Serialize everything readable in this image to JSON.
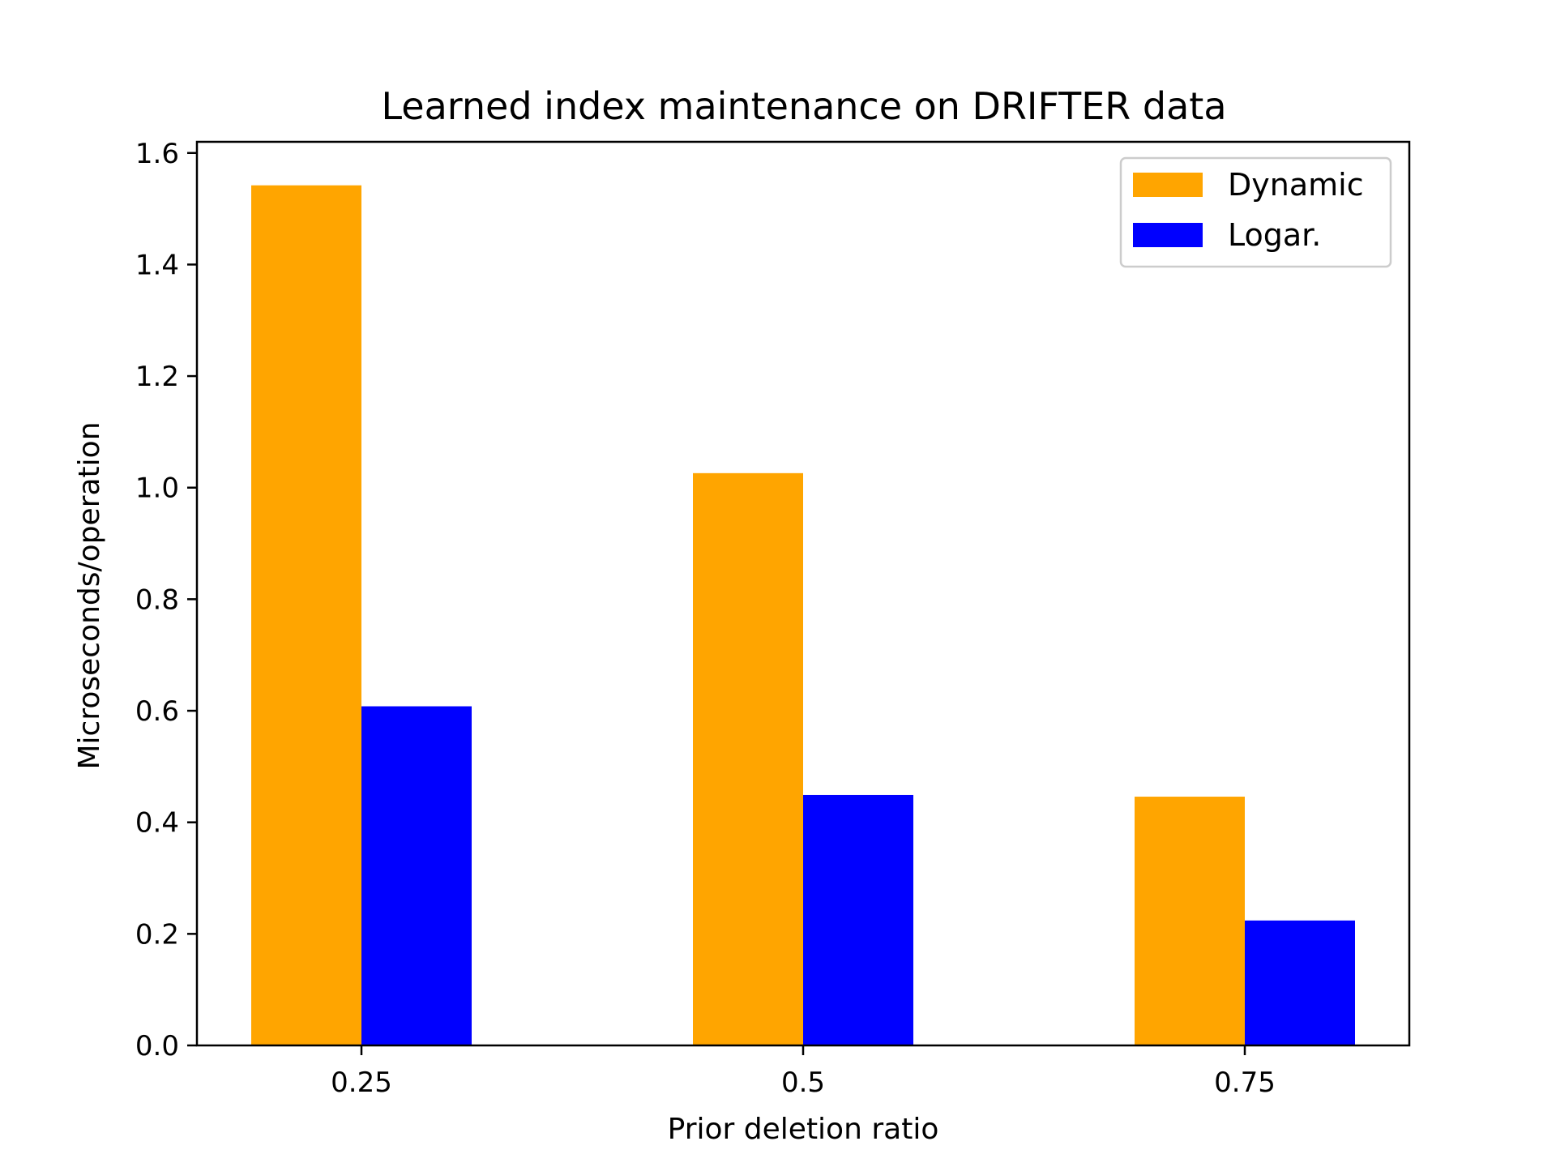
{
  "chart_data": {
    "type": "bar",
    "title": "Learned index maintenance on DRIFTER data",
    "xlabel": "Prior deletion ratio",
    "ylabel": "Microseconds/operation",
    "categories": [
      "0.25",
      "0.5",
      "0.75"
    ],
    "series": [
      {
        "name": "Dynamic",
        "color": "#ffa500",
        "values": [
          1.542,
          1.026,
          0.446
        ]
      },
      {
        "name": "Logar.",
        "color": "#0000ff",
        "values": [
          0.608,
          0.449,
          0.224
        ]
      }
    ],
    "ylim": [
      0,
      1.62
    ],
    "yticks": [
      "0.0",
      "0.2",
      "0.4",
      "0.6",
      "0.8",
      "1.0",
      "1.2",
      "1.4",
      "1.6"
    ],
    "grid": false,
    "legend": "top-right"
  }
}
